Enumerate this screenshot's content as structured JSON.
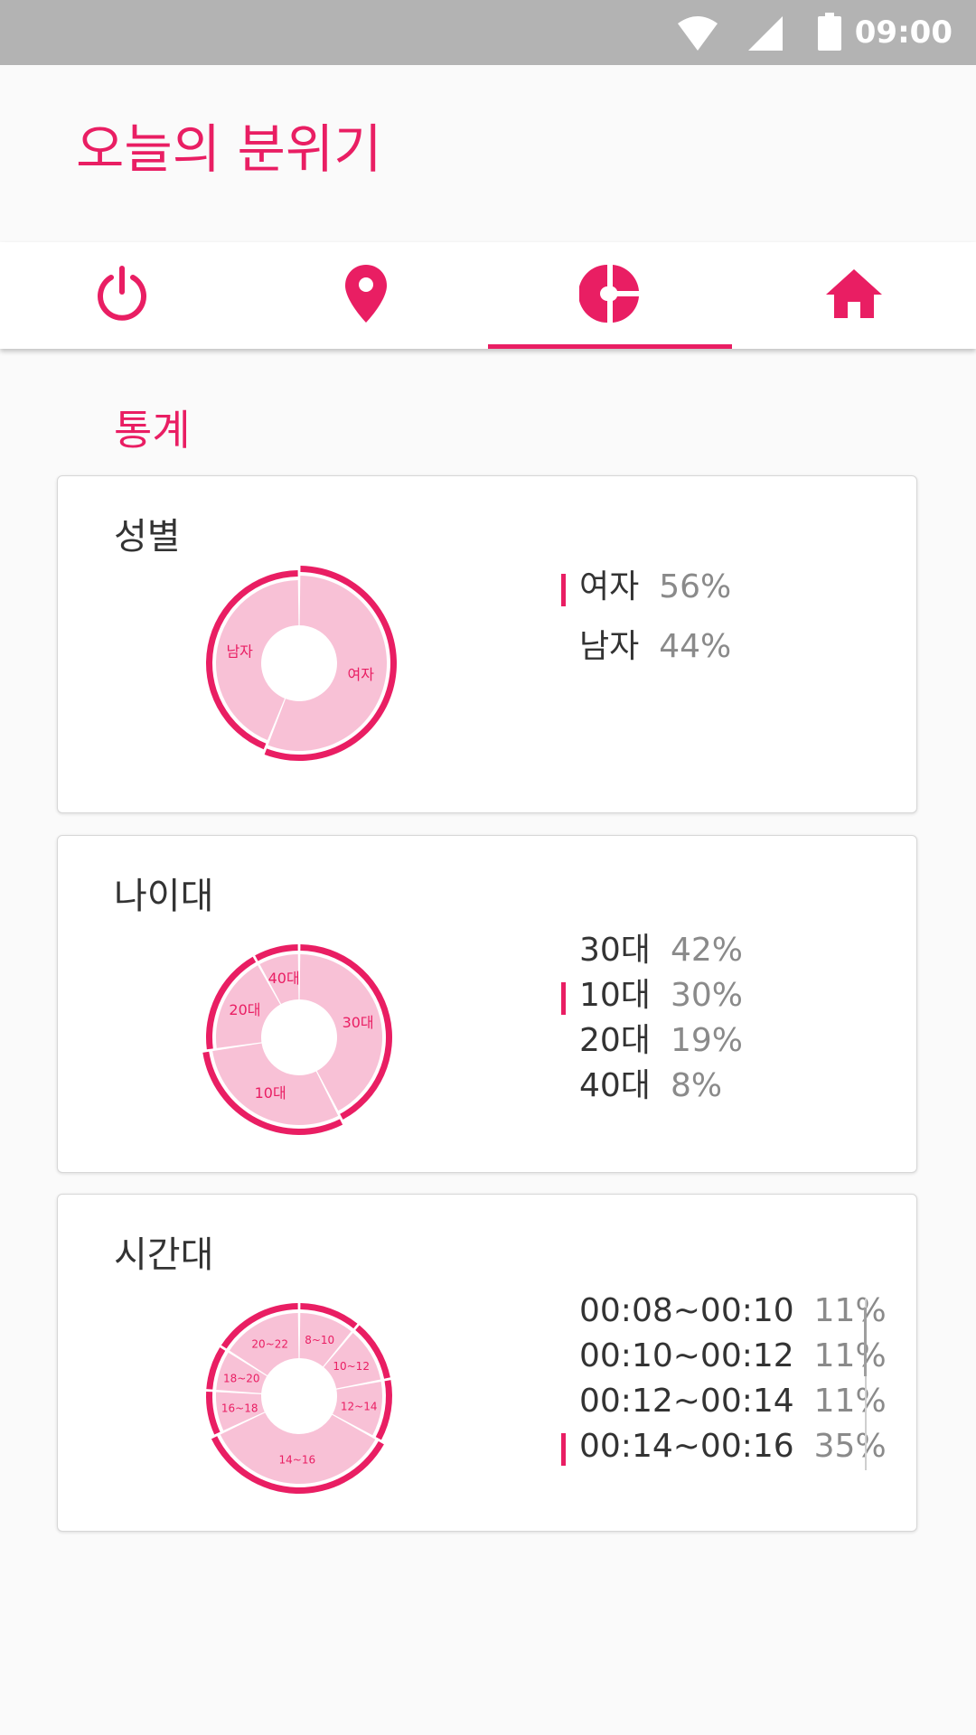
{
  "status_bar": {
    "time": "09:00",
    "icons": [
      "wifi-icon",
      "signal-icon",
      "battery-icon"
    ]
  },
  "app_bar": {
    "title": "오늘의 분위기"
  },
  "tabs": [
    {
      "icon": "power-icon",
      "selected": false
    },
    {
      "icon": "location-pin-icon",
      "selected": false
    },
    {
      "icon": "pie-chart-icon",
      "selected": true
    },
    {
      "icon": "home-icon",
      "selected": false
    }
  ],
  "colors": {
    "accent": "#e91e63",
    "slice_fill": "#f8c1d6",
    "text_dark": "#333333",
    "text_muted": "#8a8a8a"
  },
  "section_title": "통계",
  "gender": {
    "title": "성별",
    "legend": [
      {
        "label": "여자",
        "percent": "56%",
        "highlighted": true
      },
      {
        "label": "남자",
        "percent": "44%",
        "highlighted": false
      }
    ]
  },
  "age": {
    "title": "나이대",
    "legend": [
      {
        "label": "30대",
        "percent": "42%",
        "highlighted": false
      },
      {
        "label": "10대",
        "percent": "30%",
        "highlighted": true
      },
      {
        "label": "20대",
        "percent": "19%",
        "highlighted": false
      },
      {
        "label": "40대",
        "percent": "8%",
        "highlighted": false
      }
    ]
  },
  "time": {
    "title": "시간대",
    "legend": [
      {
        "label": "00:08~00:10",
        "percent": "11%",
        "highlighted": false
      },
      {
        "label": "00:10~00:12",
        "percent": "11%",
        "highlighted": false
      },
      {
        "label": "00:12~00:14",
        "percent": "11%",
        "highlighted": false
      },
      {
        "label": "00:14~00:16",
        "percent": "35%",
        "highlighted": true
      }
    ]
  },
  "chart_data": [
    {
      "type": "pie",
      "categories": [
        "여자",
        "남자"
      ],
      "values": [
        56,
        44
      ],
      "highlighted": "여자"
    },
    {
      "type": "pie",
      "categories": [
        "30대",
        "10대",
        "20대",
        "40대"
      ],
      "values": [
        42,
        30,
        19,
        8
      ],
      "highlighted": "10대"
    },
    {
      "type": "pie",
      "categories": [
        "8~10",
        "10~12",
        "12~14",
        "14~16",
        "16~18",
        "18~20",
        "20~22"
      ],
      "values": [
        11,
        11,
        11,
        35,
        8,
        8,
        16
      ],
      "highlighted": "14~16"
    }
  ]
}
